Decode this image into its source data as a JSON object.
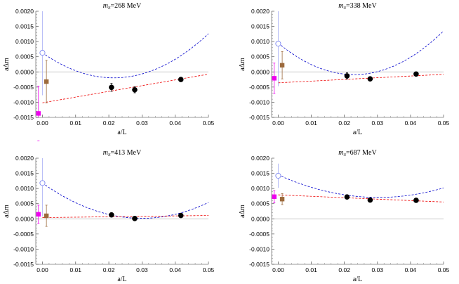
{
  "chart_data": [
    {
      "type": "scatter",
      "title_var": "m",
      "title_sub": "π",
      "title_rest": "=268 MeV",
      "xlabel": "a/L",
      "ylabel": "aΔm",
      "xlim": [
        -0.002,
        0.05
      ],
      "ylim": [
        -0.0015,
        0.002
      ],
      "xticks": [
        "0.00",
        "0.01",
        "0.02",
        "0.03",
        "0.04",
        "0.05"
      ],
      "yticks": [
        "-0.0015",
        "-0.0010",
        "-0.0005",
        "0.0000",
        "0.0005",
        "0.0010",
        "0.0015",
        "0.0020"
      ],
      "series": [
        {
          "marker": "filled-circle",
          "color": "#000000",
          "points": [
            {
              "x": 0.0208,
              "y": -0.00051,
              "err": 0.00013
            },
            {
              "x": 0.0278,
              "y": -0.00059,
              "err": 0.0001
            },
            {
              "x": 0.0417,
              "y": -0.00025,
              "err": 3e-05
            }
          ]
        },
        {
          "marker": "open-circle",
          "color": "#7b86f0",
          "points": [
            {
              "x": 0.0,
              "y": 0.00063,
              "err": 0.0014
            }
          ]
        },
        {
          "marker": "square",
          "color": "#ee00ee",
          "points": [
            {
              "x": -0.0012,
              "y": -0.00137,
              "err": 0.0009
            }
          ]
        },
        {
          "marker": "square",
          "color": "#9c6a3c",
          "points": [
            {
              "x": 0.0012,
              "y": -0.00032,
              "err": 0.0007
            }
          ]
        }
      ],
      "fits": [
        {
          "style": "dashed",
          "color": "#0000cc",
          "c0": 0.00063,
          "c1": -0.0769,
          "c2": 1.79
        },
        {
          "style": "dashed",
          "color": "#ee0000",
          "c0": -0.00102,
          "c1": 0.0189,
          "c2": 0
        }
      ]
    },
    {
      "type": "scatter",
      "title_var": "m",
      "title_sub": "π",
      "title_rest": "=338 MeV",
      "xlabel": "a/L",
      "ylabel": "aΔm",
      "xlim": [
        -0.002,
        0.05
      ],
      "ylim": [
        -0.0015,
        0.002
      ],
      "xticks": [
        "0.00",
        "0.01",
        "0.02",
        "0.03",
        "0.04",
        "0.05"
      ],
      "yticks": [
        "-0.0015",
        "-0.0010",
        "-0.0005",
        "0.0000",
        "0.0005",
        "0.0010",
        "0.0015",
        "0.0020"
      ],
      "series": [
        {
          "marker": "filled-circle",
          "color": "#000000",
          "points": [
            {
              "x": 0.0208,
              "y": -0.00013,
              "err": 0.0001
            },
            {
              "x": 0.0278,
              "y": -0.00023,
              "err": 6e-05
            },
            {
              "x": 0.0417,
              "y": -7e-05,
              "err": 3e-05
            }
          ]
        },
        {
          "marker": "open-circle",
          "color": "#7b86f0",
          "points": [
            {
              "x": 0.0,
              "y": 0.00093,
              "err": 0.0014
            }
          ]
        },
        {
          "marker": "square",
          "color": "#ee00ee",
          "points": [
            {
              "x": -0.0012,
              "y": -0.00021,
              "err": 0.0005
            }
          ]
        },
        {
          "marker": "square",
          "color": "#9c6a3c",
          "points": [
            {
              "x": 0.0012,
              "y": 0.00022,
              "err": 0.00045
            }
          ]
        }
      ],
      "fits": [
        {
          "style": "dashed",
          "color": "#0000cc",
          "c0": 0.00095,
          "c1": -0.0905,
          "c2": 1.97
        },
        {
          "style": "dashed",
          "color": "#ee0000",
          "c0": -0.00036,
          "c1": 0.0056,
          "c2": 0
        }
      ]
    },
    {
      "type": "scatter",
      "title_var": "m",
      "title_sub": "π",
      "title_rest": "=413 MeV",
      "xlabel": "a/L",
      "ylabel": "aΔm",
      "xlim": [
        -0.002,
        0.05
      ],
      "ylim": [
        -0.0015,
        0.002
      ],
      "xticks": [
        "0.00",
        "0.01",
        "0.02",
        "0.03",
        "0.04",
        "0.05"
      ],
      "yticks": [
        "-0.0015",
        "-0.0010",
        "-0.0005",
        "0.0000",
        "0.0005",
        "0.0010",
        "0.0015",
        "0.0020"
      ],
      "series": [
        {
          "marker": "filled-circle",
          "color": "#000000",
          "points": [
            {
              "x": 0.0208,
              "y": 0.00013,
              "err": 5e-05
            },
            {
              "x": 0.0278,
              "y": 1e-05,
              "err": 5e-05
            },
            {
              "x": 0.0417,
              "y": 0.00011,
              "err": 3e-05
            }
          ]
        },
        {
          "marker": "open-circle",
          "color": "#7b86f0",
          "points": [
            {
              "x": 0.0,
              "y": 0.00118,
              "err": 0.0011
            }
          ]
        },
        {
          "marker": "square",
          "color": "#ee00ee",
          "points": [
            {
              "x": -0.0012,
              "y": 0.00015,
              "err": 0.0003
            }
          ]
        },
        {
          "marker": "square",
          "color": "#9c6a3c",
          "points": [
            {
              "x": 0.0012,
              "y": 0.0001,
              "err": 0.00035
            }
          ]
        }
      ],
      "fits": [
        {
          "style": "dashed",
          "color": "#0000cc",
          "c0": 0.00118,
          "c1": -0.0778,
          "c2": 1.3
        },
        {
          "style": "dashed",
          "color": "#ee0000",
          "c0": 4e-05,
          "c1": 0.0014,
          "c2": 0
        }
      ]
    },
    {
      "type": "scatter",
      "title_var": "m",
      "title_sub": "π",
      "title_rest": "=687 MeV",
      "xlabel": "a/L",
      "ylabel": "aΔm",
      "xlim": [
        -0.002,
        0.05
      ],
      "ylim": [
        -0.0015,
        0.002
      ],
      "xticks": [
        "0.00",
        "0.01",
        "0.02",
        "0.03",
        "0.04",
        "0.05"
      ],
      "yticks": [
        "-0.0015",
        "-0.0010",
        "-0.0005",
        "0.0000",
        "0.0005",
        "0.0010",
        "0.0015",
        "0.0020"
      ],
      "series": [
        {
          "marker": "filled-circle",
          "color": "#000000",
          "points": [
            {
              "x": 0.0208,
              "y": 0.00072,
              "err": 4e-05
            },
            {
              "x": 0.0278,
              "y": 0.00062,
              "err": 3e-05
            },
            {
              "x": 0.0417,
              "y": 0.00061,
              "err": 3e-05
            }
          ]
        },
        {
          "marker": "open-circle",
          "color": "#7b86f0",
          "points": [
            {
              "x": 0.0,
              "y": 0.00142,
              "err": 0.0004
            }
          ]
        },
        {
          "marker": "square",
          "color": "#ee00ee",
          "points": [
            {
              "x": -0.0012,
              "y": 0.00073,
              "err": 0.0002
            }
          ]
        },
        {
          "marker": "square",
          "color": "#9c6a3c",
          "points": [
            {
              "x": 0.0012,
              "y": 0.00065,
              "err": 0.00018
            }
          ]
        }
      ],
      "fits": [
        {
          "style": "dashed",
          "color": "#0000cc",
          "c0": 0.00145,
          "c1": -0.0491,
          "c2": 0.81
        },
        {
          "style": "dashed",
          "color": "#ee0000",
          "c0": 0.00079,
          "c1": -0.0047,
          "c2": 0
        }
      ]
    }
  ]
}
